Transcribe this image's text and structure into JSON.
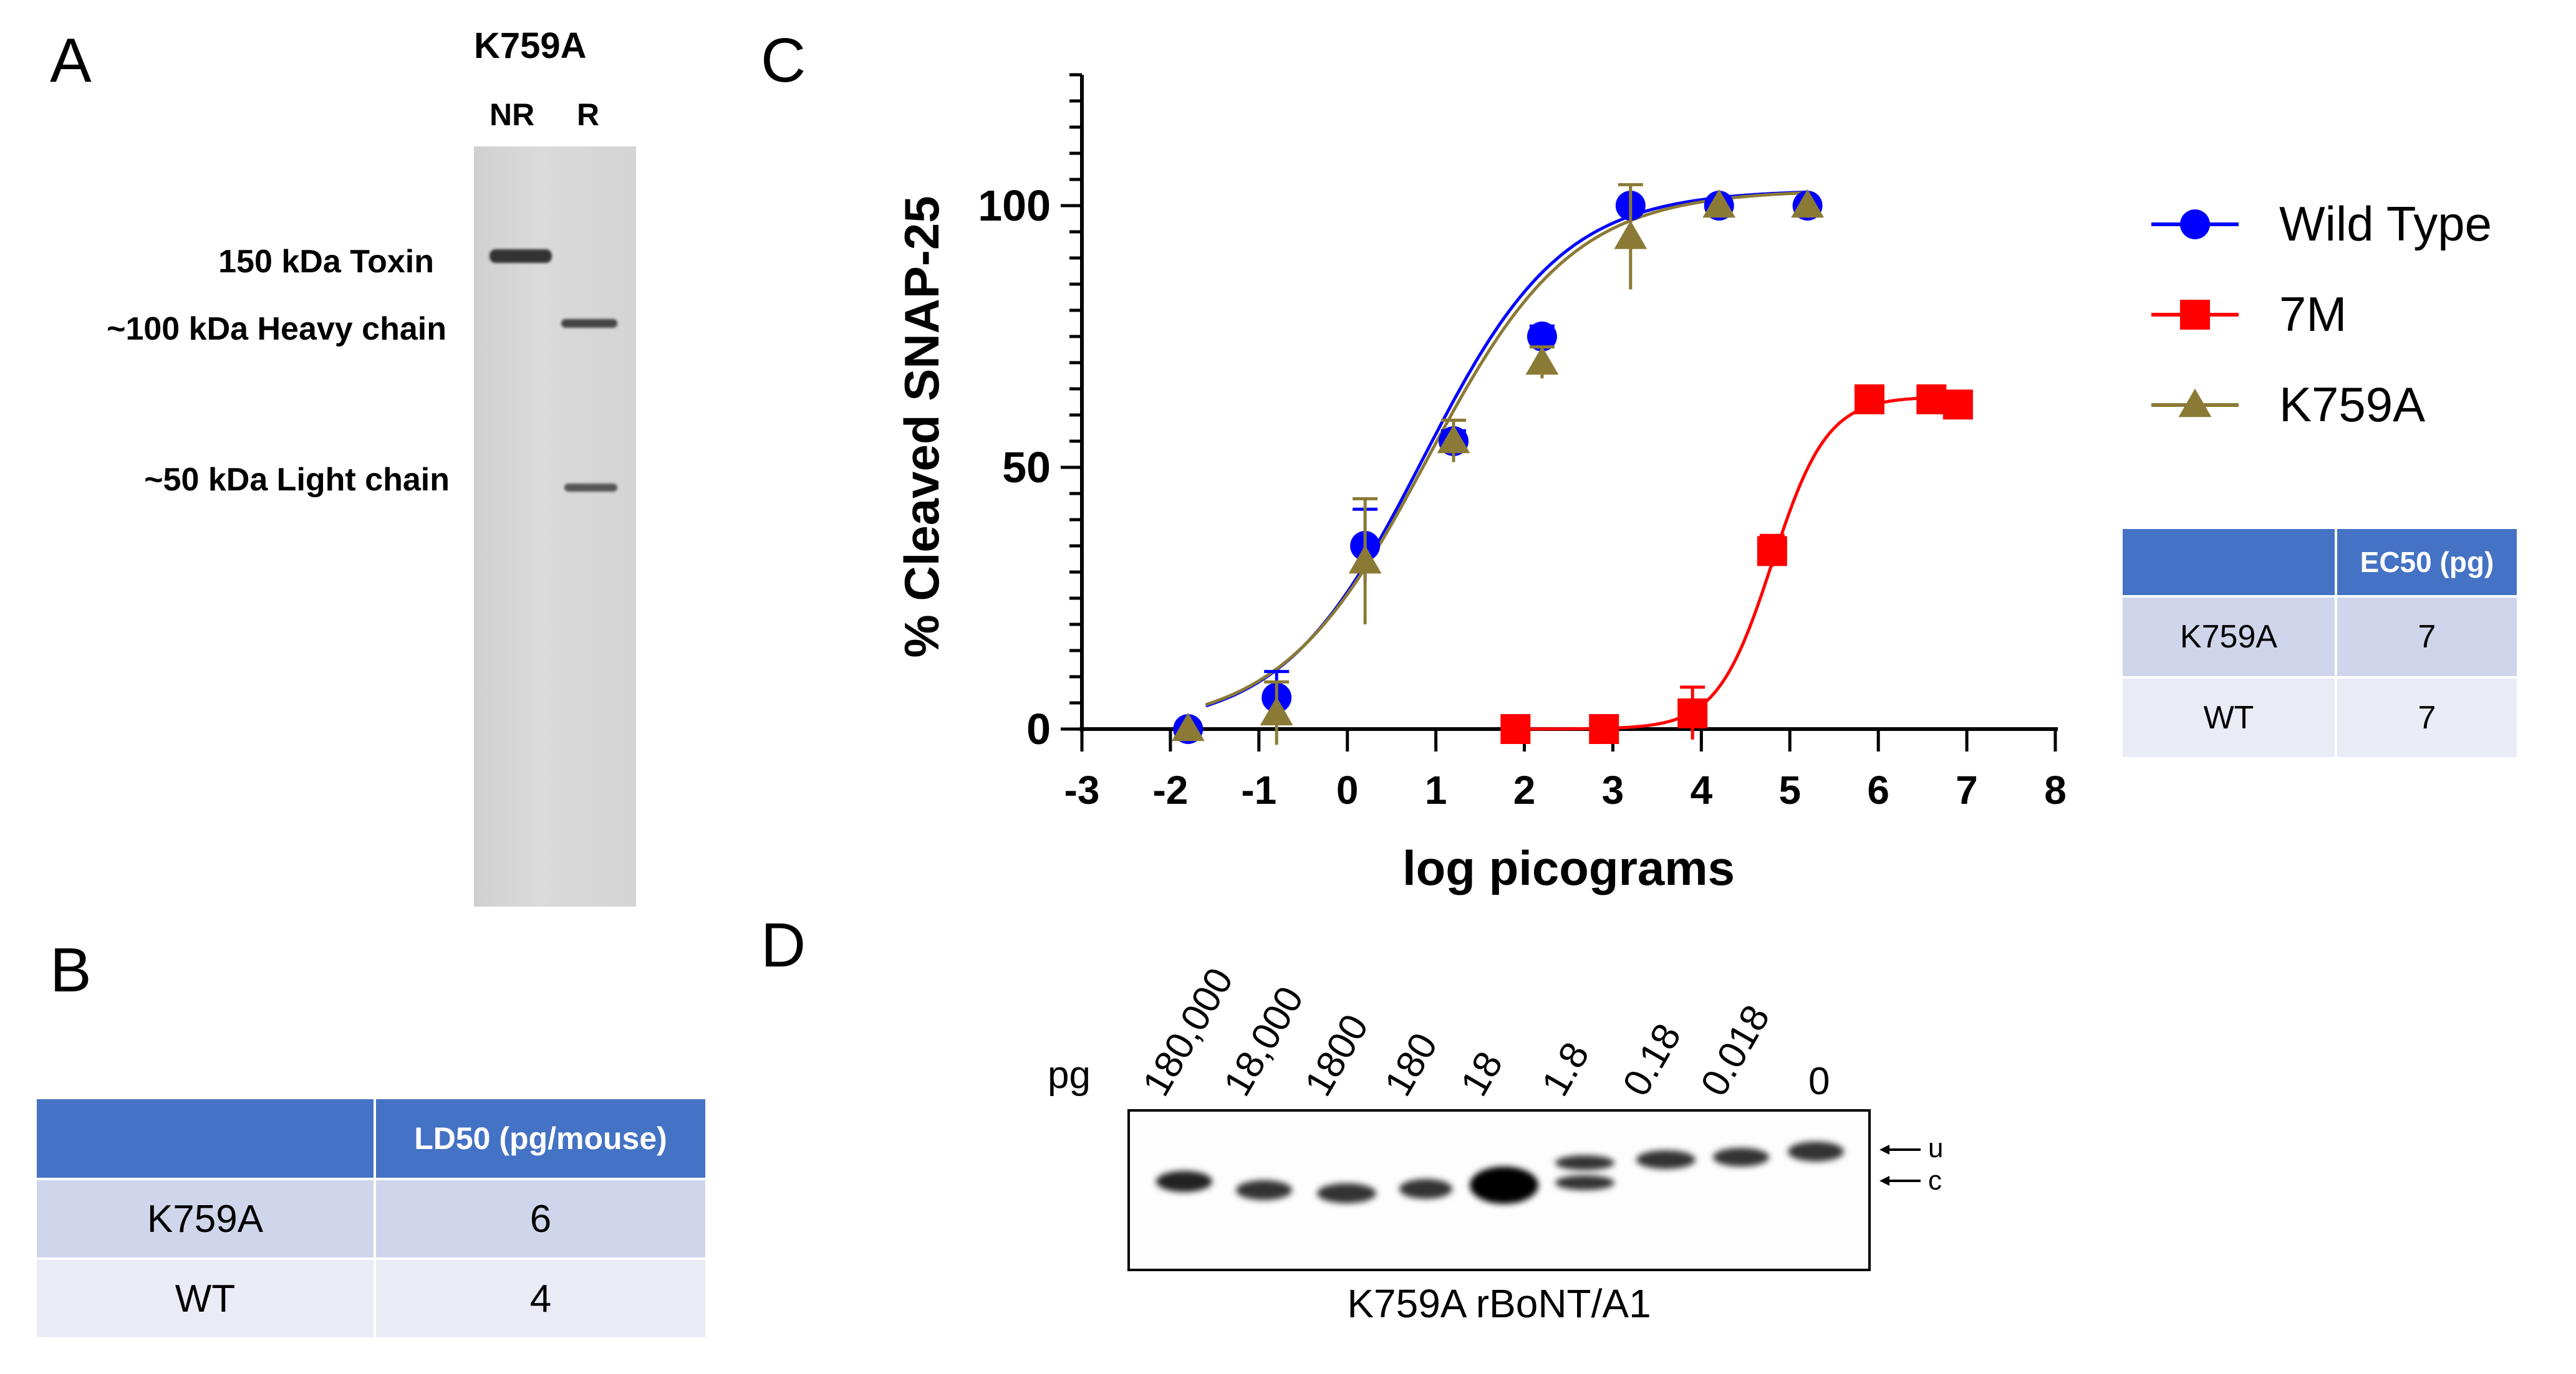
{
  "panels": {
    "a": "A",
    "b": "B",
    "c": "C",
    "d": "D"
  },
  "gel": {
    "mutant": "K759A",
    "lanes": [
      "NR",
      "R"
    ],
    "bands": [
      "150 kDa Toxin",
      "~100 kDa Heavy chain",
      "~50 kDa Light chain"
    ]
  },
  "ld50_table": {
    "header": [
      "",
      "LD50 (pg/mouse)"
    ],
    "rows": [
      [
        "K759A",
        "6"
      ],
      [
        "WT",
        "4"
      ]
    ]
  },
  "ec50_table": {
    "header": [
      "",
      "EC50 (pg)"
    ],
    "rows": [
      [
        "K759A",
        "7"
      ],
      [
        "WT",
        "7"
      ]
    ]
  },
  "chart_data": {
    "type": "scatter",
    "title": "",
    "xlabel": "log picograms",
    "ylabel": "% Cleaved SNAP-25",
    "xlim": [
      -3,
      8
    ],
    "ylim": [
      0,
      125
    ],
    "xticks": [
      "-3",
      "-2",
      "-1",
      "0",
      "1",
      "2",
      "3",
      "4",
      "5",
      "6",
      "7",
      "8"
    ],
    "yticks": [
      "0",
      "50",
      "100"
    ],
    "legend_position": "right",
    "series": [
      {
        "name": "Wild Type",
        "color": "#0000ff",
        "marker": "circle",
        "x": [
          -1.8,
          -0.8,
          0.2,
          1.2,
          2.2,
          3.2,
          4.2,
          5.2
        ],
        "y": [
          0,
          6,
          35,
          55,
          75,
          100,
          100,
          100
        ],
        "err": [
          0,
          5,
          7,
          2,
          2,
          0,
          0,
          0
        ]
      },
      {
        "name": "7M",
        "color": "#ff0000",
        "marker": "square",
        "x": [
          1.9,
          2.9,
          3.9,
          4.8,
          5.9,
          6.6,
          6.9
        ],
        "y": [
          0,
          0,
          3,
          34,
          63,
          63,
          62
        ],
        "err": [
          0,
          0,
          5,
          3,
          1,
          1,
          1
        ]
      },
      {
        "name": "K759A",
        "color": "#8a7a35",
        "marker": "triangle",
        "x": [
          -1.8,
          -0.8,
          0.2,
          1.2,
          2.2,
          3.2,
          4.2,
          5.2
        ],
        "y": [
          0,
          3,
          32,
          55,
          70,
          94,
          100,
          100
        ],
        "err": [
          0,
          6,
          12,
          4,
          3,
          10,
          0,
          0
        ]
      }
    ],
    "fits": [
      {
        "name": "Wild Type",
        "color": "#0000ff",
        "bottom": 0,
        "top": 103,
        "logEC50": 0.85,
        "hill": 0.55
      },
      {
        "name": "K759A",
        "color": "#8a7a35",
        "bottom": 0,
        "top": 103,
        "logEC50": 0.9,
        "hill": 0.53
      },
      {
        "name": "7M",
        "color": "#ff0000",
        "bottom": 0,
        "top": 63.5,
        "logEC50": 4.8,
        "hill": 1.4
      }
    ]
  },
  "blot": {
    "unit_label": "pg",
    "doses": [
      "180,000",
      "18,000",
      "1800",
      "180",
      "18",
      "1.8",
      "0.18",
      "0.018",
      "0"
    ],
    "arrow_labels": [
      "u",
      "c"
    ],
    "caption": "K759A rBoNT/A1"
  }
}
